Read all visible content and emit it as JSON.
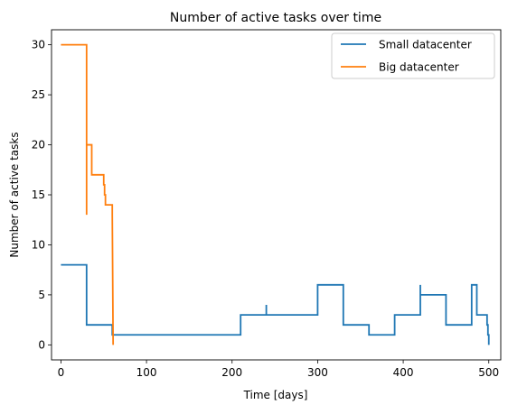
{
  "chart_data": {
    "type": "line",
    "title": "Number of active tasks over time",
    "xlabel": "Time [days]",
    "ylabel": "Number of active tasks",
    "xlim": [
      -11,
      514
    ],
    "ylim": [
      -1.5,
      31.5
    ],
    "xticks": [
      0,
      100,
      200,
      300,
      400,
      500
    ],
    "yticks": [
      0,
      5,
      10,
      15,
      20,
      25,
      30
    ],
    "grid": false,
    "legend_position": "top-right",
    "series": [
      {
        "name": "Small datacenter",
        "color": "#1f77b4",
        "points": [
          [
            0,
            8
          ],
          [
            30,
            8
          ],
          [
            30,
            2
          ],
          [
            60,
            2
          ],
          [
            60,
            1
          ],
          [
            210,
            1
          ],
          [
            210,
            3
          ],
          [
            240,
            3
          ],
          [
            240,
            4
          ],
          [
            240,
            3
          ],
          [
            300,
            3
          ],
          [
            300,
            6
          ],
          [
            330,
            6
          ],
          [
            330,
            2
          ],
          [
            360,
            2
          ],
          [
            360,
            1
          ],
          [
            390,
            1
          ],
          [
            390,
            3
          ],
          [
            420,
            3
          ],
          [
            420,
            6
          ],
          [
            420,
            5
          ],
          [
            450,
            5
          ],
          [
            450,
            2
          ],
          [
            480,
            2
          ],
          [
            480,
            6
          ],
          [
            486,
            6
          ],
          [
            486,
            3
          ],
          [
            498,
            3
          ],
          [
            498,
            2
          ],
          [
            499,
            2
          ],
          [
            499,
            1
          ],
          [
            500,
            1
          ],
          [
            500,
            0
          ]
        ]
      },
      {
        "name": "Big datacenter",
        "color": "#ff7f0e",
        "points": [
          [
            0,
            30
          ],
          [
            30,
            30
          ],
          [
            30,
            13
          ],
          [
            30,
            20
          ],
          [
            36,
            20
          ],
          [
            36,
            17
          ],
          [
            50,
            17
          ],
          [
            50,
            16
          ],
          [
            51,
            16
          ],
          [
            51,
            15
          ],
          [
            52,
            15
          ],
          [
            52,
            14
          ],
          [
            60,
            14
          ],
          [
            60,
            13
          ],
          [
            61,
            0
          ]
        ]
      }
    ]
  }
}
